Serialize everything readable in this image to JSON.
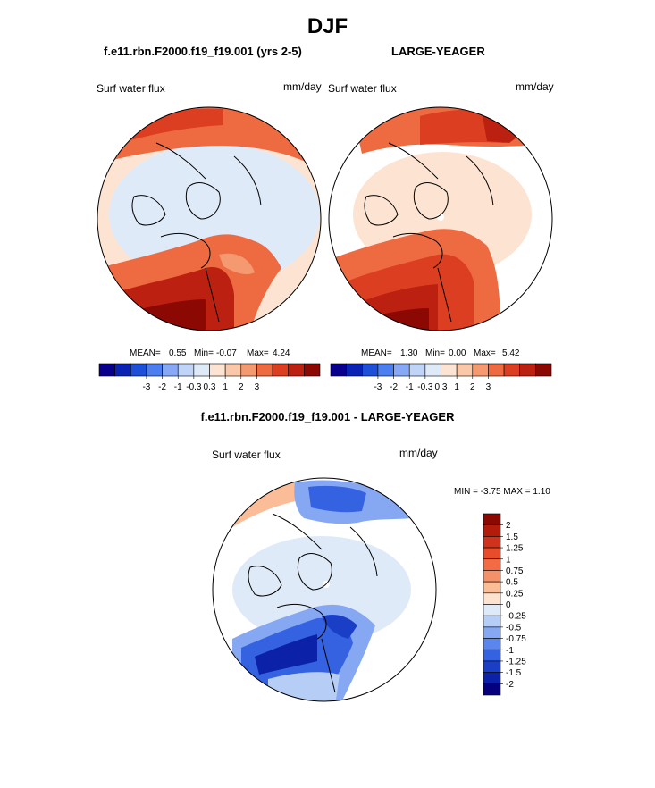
{
  "season_title": "DJF",
  "panel1": {
    "case_title": "f.e11.rbn.F2000.f19_f19.001 (yrs 2-5)",
    "variable": "Surf water flux",
    "units": "mm/day",
    "stats": {
      "mean_label": "MEAN=",
      "mean": "0.55",
      "min_label": "Min=",
      "min": "-0.07",
      "max_label": "Max=",
      "max": "4.24"
    }
  },
  "panel2": {
    "case_title": "LARGE-YEAGER",
    "variable": "Surf water flux",
    "units": "mm/day",
    "stats": {
      "mean_label": "MEAN=",
      "mean": "1.30",
      "min_label": "Min=",
      "min": "0.00",
      "max_label": "Max=",
      "max": "5.42"
    }
  },
  "panel3": {
    "title": "f.e11.rbn.F2000.f19_f19.001 - LARGE-YEAGER",
    "variable": "Surf water flux",
    "units": "mm/day",
    "minmax": "MIN =  -3.75 MAX =   1.10"
  },
  "chart_data": [
    {
      "type": "heatmap",
      "projection": "north polar stereographic",
      "title": "f.e11.rbn.F2000.f19_f19.001 (yrs 2-5)",
      "variable": "Surf water flux",
      "units": "mm/day",
      "mean": 0.55,
      "min": -0.07,
      "max": 4.24,
      "colorbar": {
        "levels": [
          -3,
          -2,
          -1,
          -0.3,
          0.3,
          1,
          2,
          3
        ],
        "tick_labels": [
          "-3",
          "-2",
          "-1",
          "-0.3",
          "0.3",
          "1",
          "2",
          "3"
        ],
        "colors": [
          "#08008c",
          "#0a23b5",
          "#1e4fd8",
          "#4d7ef0",
          "#87a9f5",
          "#c0d4f8",
          "#dfeaf9",
          "#fde4d2",
          "#fbc7a9",
          "#f59a70",
          "#ee6a41",
          "#dc3e21",
          "#bc2010",
          "#8b0803"
        ]
      }
    },
    {
      "type": "heatmap",
      "projection": "north polar stereographic",
      "title": "LARGE-YEAGER",
      "variable": "Surf water flux",
      "units": "mm/day",
      "mean": 1.3,
      "min": 0.0,
      "max": 5.42,
      "colorbar": {
        "levels": [
          -3,
          -2,
          -1,
          -0.3,
          0.3,
          1,
          2,
          3
        ],
        "tick_labels": [
          "-3",
          "-2",
          "-1",
          "-0.3",
          "0.3",
          "1",
          "2",
          "3"
        ],
        "colors": [
          "#08008c",
          "#0a23b5",
          "#1e4fd8",
          "#4d7ef0",
          "#87a9f5",
          "#c0d4f8",
          "#dfeaf9",
          "#fde4d2",
          "#fbc7a9",
          "#f59a70",
          "#ee6a41",
          "#dc3e21",
          "#bc2010",
          "#8b0803"
        ]
      }
    },
    {
      "type": "heatmap",
      "projection": "north polar stereographic",
      "title": "f.e11.rbn.F2000.f19_f19.001 - LARGE-YEAGER",
      "variable": "Surf water flux",
      "units": "mm/day",
      "min": -3.75,
      "max": 1.1,
      "colorbar": {
        "orientation": "vertical",
        "tick_labels": [
          "2",
          "1.5",
          "1.25",
          "1",
          "0.75",
          "0.5",
          "0.25",
          "0",
          "-0.25",
          "-0.5",
          "-0.75",
          "-1",
          "-1.25",
          "-1.5",
          "-2"
        ],
        "colors": [
          "#8b0803",
          "#b31b0b",
          "#d0321b",
          "#e74c2b",
          "#f26b45",
          "#f5916a",
          "#fbbc98",
          "#fde2cf",
          "#dfeaf9",
          "#b6cdf6",
          "#86a8f2",
          "#5a86ee",
          "#3462e0",
          "#1a3fc6",
          "#0b22a8",
          "#05007d"
        ]
      }
    }
  ]
}
